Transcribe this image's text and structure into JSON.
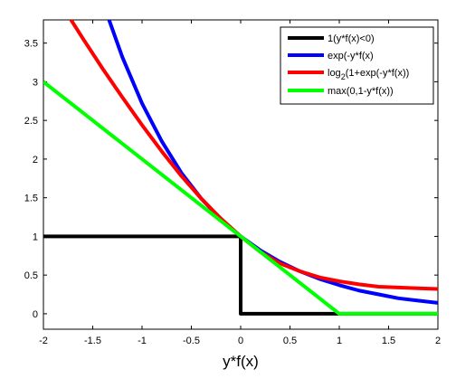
{
  "chart_data": {
    "type": "line",
    "title": "",
    "xlabel": "y*f(x)",
    "ylabel": "",
    "xlim": [
      -2,
      2
    ],
    "ylim": [
      -0.2,
      3.8
    ],
    "xticks": [
      -2,
      -1.5,
      -1,
      -0.5,
      0,
      0.5,
      1,
      1.5,
      2
    ],
    "xtick_labels": [
      "-2",
      "-1.5",
      "-1",
      "-0.5",
      "0",
      "0.5",
      "1",
      "1.5",
      "2"
    ],
    "yticks": [
      0,
      0.5,
      1,
      1.5,
      2,
      2.5,
      3,
      3.5
    ],
    "ytick_labels": [
      "0",
      "0.5",
      "1",
      "1.5",
      "2",
      "2.5",
      "3",
      "3.5"
    ],
    "grid": false,
    "legend_position": "top-right",
    "series": [
      {
        "name": "1(y*f(x)<0)",
        "color": "#000000",
        "x": [
          -2,
          0,
          0,
          2
        ],
        "y": [
          1,
          1,
          0,
          0
        ]
      },
      {
        "name": "exp(-y*f(x)",
        "color": "#0000ff",
        "x": [
          -1.34,
          -1.2,
          -1.0,
          -0.8,
          -0.6,
          -0.4,
          -0.2,
          0,
          0.2,
          0.4,
          0.6,
          0.8,
          1.0,
          1.2,
          1.4,
          1.6,
          1.8,
          2.0
        ],
        "y": [
          3.82,
          3.32,
          2.72,
          2.23,
          1.82,
          1.49,
          1.22,
          1.0,
          0.82,
          0.67,
          0.55,
          0.45,
          0.37,
          0.3,
          0.25,
          0.2,
          0.17,
          0.14
        ]
      },
      {
        "name_prefix": "log",
        "name_sub": "2",
        "name_suffix": "(1+exp(-y*f(x))",
        "color": "#ff0000",
        "x": [
          -1.73,
          -1.6,
          -1.4,
          -1.2,
          -1.0,
          -0.8,
          -0.6,
          -0.4,
          -0.2,
          0,
          0.2,
          0.4,
          0.6,
          0.8,
          1.0,
          1.2,
          1.4,
          1.6,
          1.8,
          2.0
        ],
        "y": [
          3.82,
          3.56,
          3.17,
          2.8,
          2.44,
          2.1,
          1.78,
          1.49,
          1.23,
          1.0,
          0.8,
          0.65,
          0.55,
          0.47,
          0.42,
          0.38,
          0.35,
          0.34,
          0.33,
          0.32
        ]
      },
      {
        "name": "max(0,1-y*f(x))",
        "color": "#00ff00",
        "x": [
          -2,
          1,
          2
        ],
        "y": [
          3,
          0,
          0
        ]
      }
    ]
  }
}
